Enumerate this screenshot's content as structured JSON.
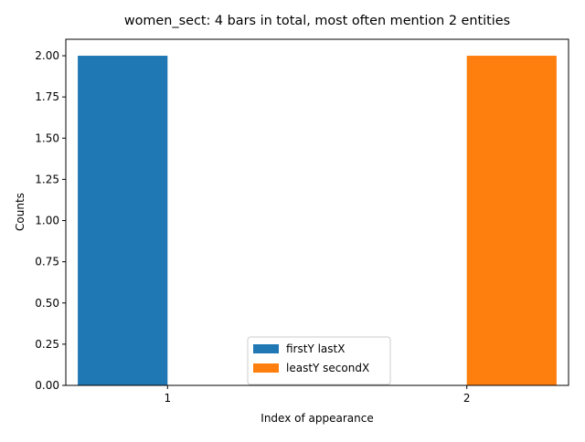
{
  "chart_data": {
    "type": "bar",
    "title": "women_sect: 4 bars in total, most often mention  2 entities",
    "xlabel": "Index of appearance",
    "ylabel": "Counts",
    "x_ticks": [
      "1",
      "2"
    ],
    "y_ticks": [
      "0.00",
      "0.25",
      "0.50",
      "0.75",
      "1.00",
      "1.25",
      "1.50",
      "1.75",
      "2.00"
    ],
    "ylim": [
      0,
      2.1
    ],
    "grid": false,
    "legend_position": "lower center",
    "series": [
      {
        "name": "firstY lastX",
        "color": "#1f77b4",
        "values": [
          2,
          0
        ]
      },
      {
        "name": "leastY secondX",
        "color": "#ff7f0e",
        "values": [
          0,
          2
        ]
      }
    ]
  }
}
